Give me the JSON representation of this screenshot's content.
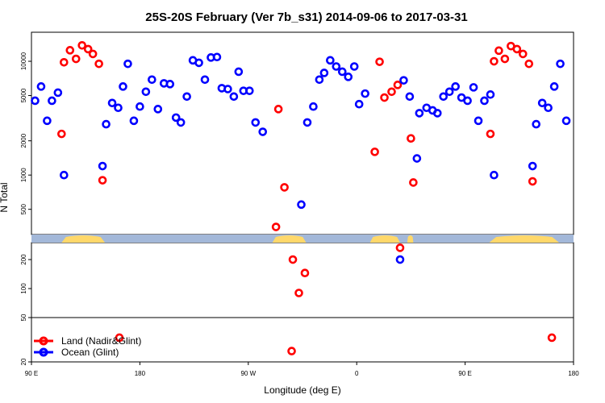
{
  "chart_data": {
    "type": "scatter",
    "title": "25S-20S February (Ver 7b_s31)   2014-09-06 to 2017-03-31",
    "xlabel": "Longitude (deg E)",
    "ylabel": "N Total",
    "y_scale": "log",
    "x_ticks": [
      {
        "value": 90,
        "label": "90 E"
      },
      {
        "value": 180,
        "label": "180"
      },
      {
        "value": 270,
        "label": "90 W"
      },
      {
        "value": 360,
        "label": "0"
      },
      {
        "value": 450,
        "label": "90 E"
      },
      {
        "value": 540,
        "label": "180"
      }
    ],
    "xlim": [
      90,
      540
    ],
    "upper_panel": {
      "ylim": [
        300,
        18000
      ],
      "y_ticks": [
        500,
        1000,
        2000,
        5000,
        10000
      ]
    },
    "middle_panel": {
      "ylim": [
        50,
        300
      ],
      "y_ticks": [
        100,
        200
      ]
    },
    "lower_panel": {
      "ylim": [
        20,
        50
      ],
      "y_ticks": [
        20,
        50
      ]
    },
    "land_strip": {
      "land_intervals": [
        [
          115,
          151
        ],
        [
          290,
          318
        ],
        [
          371,
          396
        ],
        [
          402,
          407
        ],
        [
          470,
          528
        ]
      ]
    },
    "series": [
      {
        "name": "Land (Nadir&Glint)",
        "color": "#ff0000",
        "points": [
          [
            115,
            2300
          ],
          [
            117,
            9800
          ],
          [
            122,
            12500
          ],
          [
            127,
            10500
          ],
          [
            132,
            13800
          ],
          [
            137,
            12800
          ],
          [
            141,
            11600
          ],
          [
            146,
            9500
          ],
          [
            149,
            900
          ],
          [
            163,
            33
          ],
          [
            293,
            350
          ],
          [
            295,
            3800
          ],
          [
            300,
            780
          ],
          [
            306,
            25
          ],
          [
            307,
            200
          ],
          [
            312,
            90
          ],
          [
            317,
            145
          ],
          [
            375,
            1600
          ],
          [
            379,
            9900
          ],
          [
            383,
            4800
          ],
          [
            389,
            5400
          ],
          [
            394,
            6200
          ],
          [
            396,
            265
          ],
          [
            405,
            2100
          ],
          [
            407,
            860
          ],
          [
            471,
            2300
          ],
          [
            474,
            10000
          ],
          [
            478,
            12400
          ],
          [
            483,
            10500
          ],
          [
            488,
            13600
          ],
          [
            493,
            12800
          ],
          [
            498,
            11600
          ],
          [
            503,
            9500
          ],
          [
            506,
            880
          ],
          [
            522,
            33
          ]
        ]
      },
      {
        "name": "Ocean (Glint)",
        "color": "#0000ff",
        "points": [
          [
            93,
            4500
          ],
          [
            98,
            6000
          ],
          [
            103,
            3000
          ],
          [
            107,
            4500
          ],
          [
            112,
            5300
          ],
          [
            117,
            1000
          ],
          [
            149,
            1200
          ],
          [
            152,
            2800
          ],
          [
            157,
            4300
          ],
          [
            162,
            3900
          ],
          [
            166,
            6000
          ],
          [
            170,
            9500
          ],
          [
            175,
            3000
          ],
          [
            180,
            4000
          ],
          [
            185,
            5400
          ],
          [
            190,
            6900
          ],
          [
            195,
            3800
          ],
          [
            200,
            6400
          ],
          [
            205,
            6300
          ],
          [
            210,
            3200
          ],
          [
            214,
            2900
          ],
          [
            219,
            4900
          ],
          [
            224,
            10200
          ],
          [
            229,
            9700
          ],
          [
            234,
            6900
          ],
          [
            239,
            10800
          ],
          [
            244,
            10900
          ],
          [
            248,
            5800
          ],
          [
            253,
            5700
          ],
          [
            258,
            4900
          ],
          [
            262,
            8100
          ],
          [
            266,
            5500
          ],
          [
            271,
            5500
          ],
          [
            276,
            2900
          ],
          [
            282,
            2400
          ],
          [
            314,
            550
          ],
          [
            319,
            2900
          ],
          [
            324,
            4000
          ],
          [
            329,
            6900
          ],
          [
            333,
            7900
          ],
          [
            338,
            10200
          ],
          [
            343,
            9000
          ],
          [
            348,
            8100
          ],
          [
            353,
            7300
          ],
          [
            358,
            9000
          ],
          [
            362,
            4200
          ],
          [
            367,
            5200
          ],
          [
            396,
            200
          ],
          [
            399,
            6800
          ],
          [
            404,
            4900
          ],
          [
            410,
            1400
          ],
          [
            412,
            3500
          ],
          [
            418,
            3900
          ],
          [
            423,
            3700
          ],
          [
            427,
            3500
          ],
          [
            432,
            4900
          ],
          [
            437,
            5400
          ],
          [
            442,
            6000
          ],
          [
            447,
            4800
          ],
          [
            452,
            4500
          ],
          [
            457,
            5900
          ],
          [
            461,
            3000
          ],
          [
            466,
            4500
          ],
          [
            471,
            5100
          ],
          [
            474,
            1000
          ],
          [
            506,
            1200
          ],
          [
            509,
            2800
          ],
          [
            514,
            4300
          ],
          [
            519,
            3900
          ],
          [
            524,
            6000
          ],
          [
            529,
            9500
          ],
          [
            534,
            3000
          ]
        ]
      }
    ],
    "legend": {
      "position": "bottom-left",
      "entries": [
        "Land (Nadir&Glint)",
        "Ocean (Glint)"
      ]
    }
  }
}
